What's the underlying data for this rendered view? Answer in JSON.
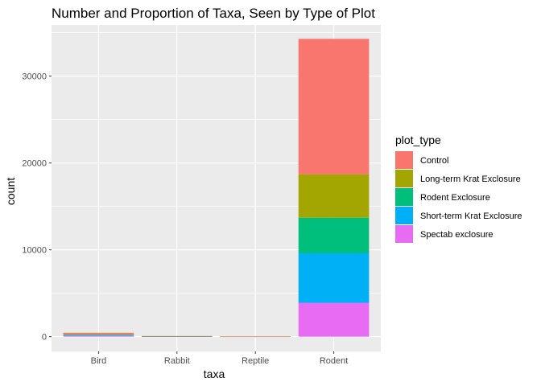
{
  "chart_data": {
    "type": "bar",
    "stacked": true,
    "title": "Number and Proportion of Taxa, Seen by Type of Plot",
    "xlabel": "taxa",
    "ylabel": "count",
    "categories": [
      "Bird",
      "Rabbit",
      "Reptile",
      "Rodent"
    ],
    "yticks": [
      0,
      10000,
      20000,
      30000
    ],
    "ylim": [
      -1700,
      35900
    ],
    "grid": true,
    "legend": {
      "title": "plot_type",
      "position": "right"
    },
    "series": [
      {
        "name": "Control",
        "color": "#F8766D",
        "values": [
          150,
          25,
          7,
          15600
        ]
      },
      {
        "name": "Long-term Krat Exclosure",
        "color": "#A3A500",
        "values": [
          60,
          12,
          5,
          5000
        ]
      },
      {
        "name": "Rodent Exclosure",
        "color": "#00BF7D",
        "values": [
          60,
          10,
          5,
          4100
        ]
      },
      {
        "name": "Short-term Krat Exclosure",
        "color": "#00B0F6",
        "values": [
          60,
          15,
          5,
          5700
        ]
      },
      {
        "name": "Spectab exclosure",
        "color": "#E76BF3",
        "values": [
          120,
          13,
          6,
          3900
        ]
      }
    ]
  }
}
